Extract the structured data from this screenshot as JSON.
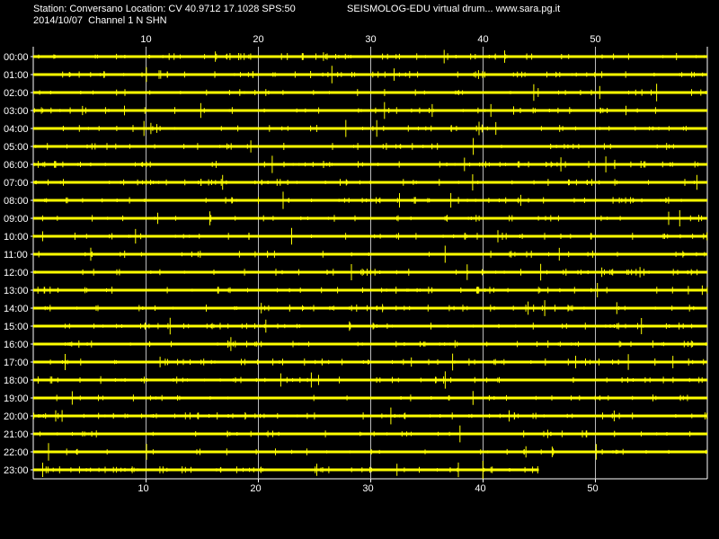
{
  "header": {
    "station_line": "Station: Conversano Location: CV 40.9712 17.1028 SPS:50",
    "date_line": "2014/10/07  Channel 1 N SHN",
    "site_line": "SEISMOLOG-EDU virtual drum... www.sara.pg.it"
  },
  "chart_data": {
    "type": "line",
    "title": "",
    "x_ticks": [
      10,
      20,
      30,
      40,
      50
    ],
    "x_range": [
      0,
      60
    ],
    "grid": true,
    "hour_labels": [
      "00:00",
      "01:00",
      "02:00",
      "03:00",
      "04:00",
      "05:00",
      "06:00",
      "07:00",
      "08:00",
      "09:00",
      "10:00",
      "11:00",
      "12:00",
      "13:00",
      "14:00",
      "15:00",
      "16:00",
      "17:00",
      "18:00",
      "19:00",
      "20:00",
      "21:00",
      "22:00",
      "23:00"
    ],
    "last_row_end_minute": 45,
    "colors": {
      "trace": "#ffff00",
      "grid": "#ffffff",
      "background": "#000000",
      "text": "#ffffff"
    }
  }
}
